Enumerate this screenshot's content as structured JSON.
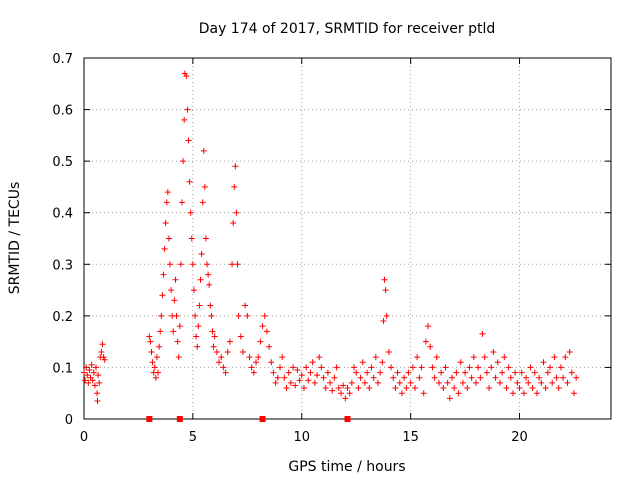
{
  "chart_data": {
    "type": "scatter",
    "title": "Day 174 of 2017, SRMTID for receiver ptld",
    "xlabel": "GPS time / hours",
    "ylabel": "SRMTID / TECUs",
    "xlim": [
      0,
      24.2
    ],
    "ylim": [
      0,
      0.7
    ],
    "x_ticks": [
      0,
      5,
      10,
      15,
      20
    ],
    "x_tick_labels": [
      "0",
      "5",
      "10",
      "15",
      "20"
    ],
    "y_ticks": [
      0,
      0.1,
      0.2,
      0.3,
      0.4,
      0.5,
      0.6,
      0.7
    ],
    "y_tick_labels": [
      "0",
      "0.1",
      "0.2",
      "0.3",
      "0.4",
      "0.5",
      "0.6",
      "0.7"
    ],
    "grid": true,
    "marker": "+",
    "series_color": "#ff0000",
    "zero_markers": [
      3.0,
      4.4,
      8.2,
      12.1
    ],
    "series": [
      {
        "name": "SRMTID",
        "points": [
          [
            0.0,
            0.09
          ],
          [
            0.05,
            0.075
          ],
          [
            0.1,
            0.1
          ],
          [
            0.15,
            0.085
          ],
          [
            0.2,
            0.07
          ],
          [
            0.25,
            0.095
          ],
          [
            0.3,
            0.08
          ],
          [
            0.35,
            0.105
          ],
          [
            0.4,
            0.075
          ],
          [
            0.45,
            0.09
          ],
          [
            0.5,
            0.065
          ],
          [
            0.55,
            0.1
          ],
          [
            0.6,
            0.05
          ],
          [
            0.62,
            0.035
          ],
          [
            0.65,
            0.085
          ],
          [
            0.7,
            0.07
          ],
          [
            0.75,
            0.12
          ],
          [
            0.8,
            0.13
          ],
          [
            0.85,
            0.145
          ],
          [
            0.9,
            0.12
          ],
          [
            0.95,
            0.115
          ],
          [
            3.0,
            0.16
          ],
          [
            3.05,
            0.15
          ],
          [
            3.1,
            0.13
          ],
          [
            3.15,
            0.11
          ],
          [
            3.2,
            0.09
          ],
          [
            3.25,
            0.1
          ],
          [
            3.3,
            0.08
          ],
          [
            3.35,
            0.12
          ],
          [
            3.4,
            0.09
          ],
          [
            3.45,
            0.14
          ],
          [
            3.5,
            0.17
          ],
          [
            3.55,
            0.2
          ],
          [
            3.6,
            0.24
          ],
          [
            3.65,
            0.28
          ],
          [
            3.7,
            0.33
          ],
          [
            3.75,
            0.38
          ],
          [
            3.8,
            0.42
          ],
          [
            3.85,
            0.44
          ],
          [
            3.9,
            0.35
          ],
          [
            3.95,
            0.3
          ],
          [
            4.0,
            0.25
          ],
          [
            4.05,
            0.2
          ],
          [
            4.1,
            0.17
          ],
          [
            4.15,
            0.23
          ],
          [
            4.2,
            0.27
          ],
          [
            4.25,
            0.2
          ],
          [
            4.3,
            0.15
          ],
          [
            4.35,
            0.12
          ],
          [
            4.4,
            0.18
          ],
          [
            4.45,
            0.3
          ],
          [
            4.5,
            0.42
          ],
          [
            4.55,
            0.5
          ],
          [
            4.6,
            0.58
          ],
          [
            4.63,
            0.67
          ],
          [
            4.7,
            0.665
          ],
          [
            4.75,
            0.6
          ],
          [
            4.8,
            0.54
          ],
          [
            4.85,
            0.46
          ],
          [
            4.9,
            0.4
          ],
          [
            4.95,
            0.35
          ],
          [
            5.0,
            0.3
          ],
          [
            5.05,
            0.25
          ],
          [
            5.1,
            0.2
          ],
          [
            5.15,
            0.16
          ],
          [
            5.2,
            0.14
          ],
          [
            5.25,
            0.18
          ],
          [
            5.3,
            0.22
          ],
          [
            5.35,
            0.27
          ],
          [
            5.4,
            0.32
          ],
          [
            5.45,
            0.42
          ],
          [
            5.5,
            0.52
          ],
          [
            5.55,
            0.45
          ],
          [
            5.6,
            0.35
          ],
          [
            5.65,
            0.3
          ],
          [
            5.7,
            0.28
          ],
          [
            5.75,
            0.26
          ],
          [
            5.8,
            0.22
          ],
          [
            5.85,
            0.2
          ],
          [
            5.9,
            0.17
          ],
          [
            5.95,
            0.14
          ],
          [
            6.0,
            0.16
          ],
          [
            6.1,
            0.13
          ],
          [
            6.2,
            0.11
          ],
          [
            6.3,
            0.12
          ],
          [
            6.4,
            0.1
          ],
          [
            6.5,
            0.09
          ],
          [
            6.6,
            0.13
          ],
          [
            6.7,
            0.15
          ],
          [
            6.8,
            0.3
          ],
          [
            6.85,
            0.38
          ],
          [
            6.9,
            0.45
          ],
          [
            6.95,
            0.49
          ],
          [
            7.0,
            0.4
          ],
          [
            7.05,
            0.3
          ],
          [
            7.1,
            0.2
          ],
          [
            7.2,
            0.16
          ],
          [
            7.3,
            0.13
          ],
          [
            7.4,
            0.22
          ],
          [
            7.5,
            0.2
          ],
          [
            7.6,
            0.12
          ],
          [
            7.7,
            0.1
          ],
          [
            7.8,
            0.09
          ],
          [
            7.9,
            0.11
          ],
          [
            8.0,
            0.12
          ],
          [
            8.1,
            0.15
          ],
          [
            8.2,
            0.18
          ],
          [
            8.3,
            0.2
          ],
          [
            8.4,
            0.17
          ],
          [
            8.5,
            0.14
          ],
          [
            8.6,
            0.11
          ],
          [
            8.7,
            0.09
          ],
          [
            8.8,
            0.07
          ],
          [
            8.9,
            0.08
          ],
          [
            9.0,
            0.1
          ],
          [
            9.1,
            0.12
          ],
          [
            9.2,
            0.08
          ],
          [
            9.3,
            0.06
          ],
          [
            9.4,
            0.09
          ],
          [
            9.5,
            0.07
          ],
          [
            9.6,
            0.1
          ],
          [
            9.7,
            0.065
          ],
          [
            9.8,
            0.095
          ],
          [
            9.9,
            0.075
          ],
          [
            10.0,
            0.085
          ],
          [
            10.1,
            0.06
          ],
          [
            10.2,
            0.1
          ],
          [
            10.3,
            0.075
          ],
          [
            10.4,
            0.09
          ],
          [
            10.5,
            0.11
          ],
          [
            10.6,
            0.07
          ],
          [
            10.7,
            0.085
          ],
          [
            10.8,
            0.12
          ],
          [
            10.9,
            0.1
          ],
          [
            11.0,
            0.08
          ],
          [
            11.1,
            0.06
          ],
          [
            11.2,
            0.09
          ],
          [
            11.3,
            0.07
          ],
          [
            11.4,
            0.055
          ],
          [
            11.5,
            0.08
          ],
          [
            11.6,
            0.1
          ],
          [
            11.7,
            0.06
          ],
          [
            11.8,
            0.05
          ],
          [
            11.9,
            0.065
          ],
          [
            12.0,
            0.04
          ],
          [
            12.1,
            0.06
          ],
          [
            12.2,
            0.05
          ],
          [
            12.3,
            0.07
          ],
          [
            12.4,
            0.1
          ],
          [
            12.5,
            0.09
          ],
          [
            12.6,
            0.06
          ],
          [
            12.7,
            0.08
          ],
          [
            12.8,
            0.11
          ],
          [
            12.9,
            0.07
          ],
          [
            13.0,
            0.09
          ],
          [
            13.1,
            0.06
          ],
          [
            13.2,
            0.1
          ],
          [
            13.3,
            0.08
          ],
          [
            13.4,
            0.12
          ],
          [
            13.5,
            0.07
          ],
          [
            13.6,
            0.09
          ],
          [
            13.7,
            0.11
          ],
          [
            13.75,
            0.19
          ],
          [
            13.8,
            0.27
          ],
          [
            13.85,
            0.25
          ],
          [
            13.9,
            0.2
          ],
          [
            14.0,
            0.13
          ],
          [
            14.1,
            0.1
          ],
          [
            14.2,
            0.08
          ],
          [
            14.3,
            0.06
          ],
          [
            14.4,
            0.09
          ],
          [
            14.5,
            0.07
          ],
          [
            14.6,
            0.05
          ],
          [
            14.7,
            0.08
          ],
          [
            14.8,
            0.06
          ],
          [
            14.9,
            0.09
          ],
          [
            15.0,
            0.07
          ],
          [
            15.1,
            0.1
          ],
          [
            15.2,
            0.06
          ],
          [
            15.3,
            0.12
          ],
          [
            15.4,
            0.08
          ],
          [
            15.5,
            0.1
          ],
          [
            15.6,
            0.05
          ],
          [
            15.7,
            0.15
          ],
          [
            15.8,
            0.18
          ],
          [
            15.9,
            0.14
          ],
          [
            16.0,
            0.1
          ],
          [
            16.1,
            0.08
          ],
          [
            16.2,
            0.12
          ],
          [
            16.3,
            0.07
          ],
          [
            16.4,
            0.09
          ],
          [
            16.5,
            0.06
          ],
          [
            16.6,
            0.1
          ],
          [
            16.7,
            0.07
          ],
          [
            16.8,
            0.04
          ],
          [
            16.9,
            0.08
          ],
          [
            17.0,
            0.06
          ],
          [
            17.1,
            0.09
          ],
          [
            17.2,
            0.05
          ],
          [
            17.3,
            0.11
          ],
          [
            17.4,
            0.07
          ],
          [
            17.5,
            0.09
          ],
          [
            17.6,
            0.06
          ],
          [
            17.7,
            0.1
          ],
          [
            17.8,
            0.08
          ],
          [
            17.9,
            0.12
          ],
          [
            18.0,
            0.07
          ],
          [
            18.1,
            0.1
          ],
          [
            18.2,
            0.08
          ],
          [
            18.3,
            0.165
          ],
          [
            18.4,
            0.12
          ],
          [
            18.5,
            0.09
          ],
          [
            18.6,
            0.06
          ],
          [
            18.7,
            0.1
          ],
          [
            18.8,
            0.13
          ],
          [
            18.9,
            0.08
          ],
          [
            19.0,
            0.11
          ],
          [
            19.1,
            0.07
          ],
          [
            19.2,
            0.09
          ],
          [
            19.3,
            0.12
          ],
          [
            19.4,
            0.06
          ],
          [
            19.5,
            0.1
          ],
          [
            19.6,
            0.08
          ],
          [
            19.7,
            0.05
          ],
          [
            19.8,
            0.09
          ],
          [
            19.9,
            0.07
          ],
          [
            20.0,
            0.06
          ],
          [
            20.1,
            0.09
          ],
          [
            20.2,
            0.05
          ],
          [
            20.3,
            0.08
          ],
          [
            20.4,
            0.07
          ],
          [
            20.5,
            0.1
          ],
          [
            20.6,
            0.06
          ],
          [
            20.7,
            0.09
          ],
          [
            20.8,
            0.05
          ],
          [
            20.9,
            0.08
          ],
          [
            21.0,
            0.07
          ],
          [
            21.1,
            0.11
          ],
          [
            21.2,
            0.06
          ],
          [
            21.3,
            0.09
          ],
          [
            21.4,
            0.1
          ],
          [
            21.5,
            0.07
          ],
          [
            21.6,
            0.12
          ],
          [
            21.7,
            0.08
          ],
          [
            21.8,
            0.06
          ],
          [
            21.9,
            0.1
          ],
          [
            22.0,
            0.08
          ],
          [
            22.1,
            0.12
          ],
          [
            22.2,
            0.07
          ],
          [
            22.3,
            0.13
          ],
          [
            22.4,
            0.09
          ],
          [
            22.5,
            0.05
          ],
          [
            22.6,
            0.08
          ]
        ]
      }
    ]
  }
}
